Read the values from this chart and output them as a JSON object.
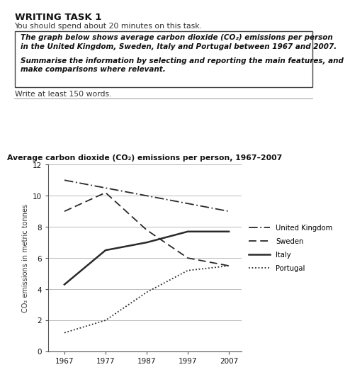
{
  "title": "Average carbon dioxide (CO₂) emissions per person, 1967–2007",
  "ylabel": "CO₂ emissions in metric tonnes",
  "years": [
    1967,
    1977,
    1987,
    1997,
    2007
  ],
  "uk": [
    11.0,
    10.5,
    10.0,
    9.5,
    9.0
  ],
  "sweden": [
    9.0,
    10.2,
    7.8,
    6.0,
    5.5
  ],
  "italy": [
    4.3,
    6.5,
    7.0,
    7.7,
    7.7
  ],
  "portugal": [
    1.2,
    2.0,
    3.8,
    5.2,
    5.5
  ],
  "ylim": [
    0,
    12
  ],
  "yticks": [
    0,
    2,
    4,
    6,
    8,
    10,
    12
  ],
  "xticks": [
    1967,
    1977,
    1987,
    1997,
    2007
  ],
  "header_title": "WRITING TASK 1",
  "header_sub": "You should spend about 20 minutes on this task.",
  "box_line1": "The graph below shows average carbon dioxide (CO₂) emissions per person",
  "box_line2": "in the United Kingdom, Sweden, Italy and Portugal between 1967 and 2007.",
  "box_line3": "Summarise the information by selecting and reporting the main features, and",
  "box_line4": "make comparisons where relevant.",
  "footer": "Write at least 150 words.",
  "legend_labels": [
    "United Kingdom",
    "Sweden",
    "Italy",
    "Portugal"
  ],
  "bg_color": "#ffffff",
  "line_color": "#2a2a2a",
  "grid_color": "#b0b0b0"
}
